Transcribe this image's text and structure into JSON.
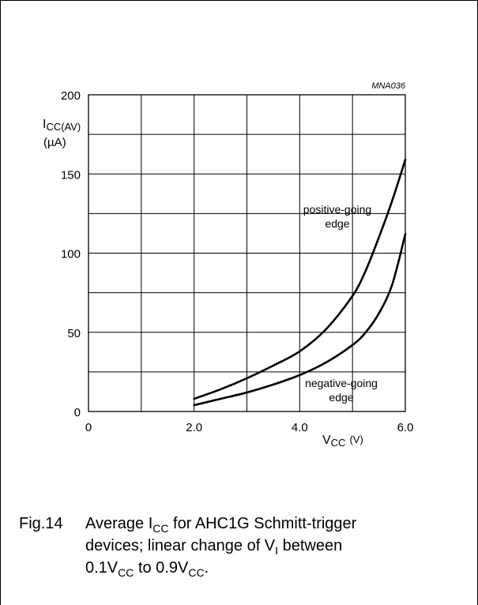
{
  "chart_data": {
    "type": "line",
    "figure_code": "MNA036",
    "ylabel_main": "I",
    "ylabel_sub": "CC(AV)",
    "ylabel_unit": "(µA)",
    "xlabel_main": "V",
    "xlabel_sub": "CC",
    "xlabel_unit": "(V)",
    "xlim": [
      0,
      6
    ],
    "ylim": [
      0,
      200
    ],
    "x_ticks": [
      {
        "value": 0,
        "label": "0"
      },
      {
        "value": 2,
        "label": "2.0"
      },
      {
        "value": 4,
        "label": "4.0"
      },
      {
        "value": 6,
        "label": "6.0"
      }
    ],
    "y_ticks": [
      {
        "value": 0,
        "label": "0"
      },
      {
        "value": 50,
        "label": "50"
      },
      {
        "value": 100,
        "label": "100"
      },
      {
        "value": 150,
        "label": "150"
      },
      {
        "value": 200,
        "label": "200"
      }
    ],
    "grid": true,
    "series": [
      {
        "name": "positive-going edge",
        "label_lines": [
          "positive-going",
          "edge"
        ],
        "x": [
          2.0,
          2.5,
          3.0,
          3.5,
          4.0,
          4.5,
          5.0,
          5.25,
          5.5,
          5.75,
          6.0
        ],
        "y": [
          8,
          14,
          21,
          29,
          38,
          52,
          73,
          89,
          110,
          133,
          159
        ]
      },
      {
        "name": "negative-going edge",
        "label_lines": [
          "negative-going",
          "edge"
        ],
        "x": [
          2.0,
          2.5,
          3.0,
          3.5,
          4.0,
          4.5,
          5.0,
          5.25,
          5.5,
          5.75,
          6.0
        ],
        "y": [
          4,
          8,
          12,
          17,
          23,
          31,
          42,
          50,
          62,
          80,
          112
        ]
      }
    ]
  },
  "caption": {
    "fig_label": "Fig.14",
    "line1_a": "Average I",
    "line1_sub": "CC",
    "line1_b": " for AHC1G Schmitt-trigger",
    "line2_a": "devices; linear change of V",
    "line2_sub": "I",
    "line2_b": " between",
    "line3_a": "0.1V",
    "line3_sub1": "CC",
    "line3_b": " to 0.9V",
    "line3_sub2": "CC",
    "line3_c": "."
  }
}
